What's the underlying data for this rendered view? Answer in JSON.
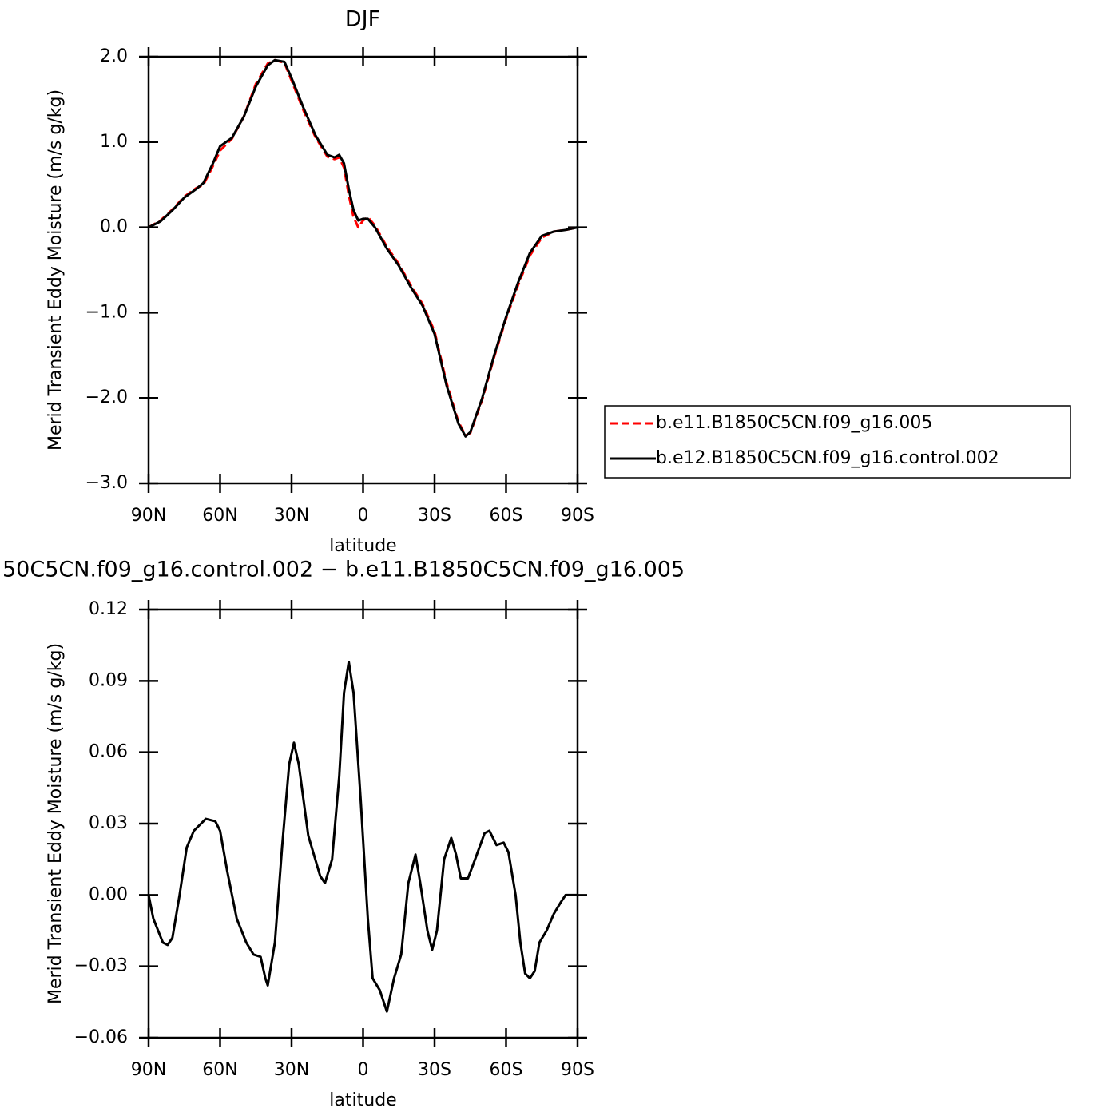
{
  "chart_data": [
    {
      "type": "line",
      "title": "DJF",
      "xlabel": "latitude",
      "ylabel": "Merid Transient Eddy Moisture (m/s g/kg)",
      "x": [
        90,
        85,
        80,
        75,
        70,
        67,
        63,
        60,
        55,
        50,
        45,
        40,
        37,
        33,
        30,
        25,
        20,
        15,
        12,
        10,
        8,
        6,
        4,
        2,
        0,
        -2,
        -5,
        -10,
        -15,
        -20,
        -25,
        -30,
        -35,
        -40,
        -43,
        -45,
        -50,
        -55,
        -60,
        -65,
        -70,
        -75,
        -80,
        -85,
        -90
      ],
      "series": [
        {
          "name": "b.e11.B1850C5CN.f09_g16.005",
          "color": "#ff0000",
          "dash": true,
          "values": [
            0.0,
            0.08,
            0.21,
            0.36,
            0.46,
            0.5,
            0.72,
            0.9,
            1.04,
            1.3,
            1.68,
            1.92,
            1.96,
            1.93,
            1.72,
            1.37,
            1.06,
            0.83,
            0.8,
            0.82,
            0.7,
            0.38,
            0.12,
            0.0,
            0.08,
            0.12,
            0.02,
            -0.23,
            -0.43,
            -0.68,
            -0.9,
            -1.22,
            -1.82,
            -2.28,
            -2.44,
            -2.41,
            -2.02,
            -1.52,
            -1.07,
            -0.68,
            -0.33,
            -0.12,
            -0.05,
            -0.03,
            0.0
          ]
        },
        {
          "name": "b.e12.B1850C5CN.f09_g16.control.002",
          "color": "#000000",
          "dash": false,
          "values": [
            0.0,
            0.07,
            0.2,
            0.35,
            0.45,
            0.52,
            0.75,
            0.95,
            1.05,
            1.3,
            1.65,
            1.9,
            1.96,
            1.94,
            1.75,
            1.4,
            1.08,
            0.85,
            0.82,
            0.85,
            0.75,
            0.45,
            0.2,
            0.08,
            0.1,
            0.1,
            0.0,
            -0.25,
            -0.45,
            -0.7,
            -0.92,
            -1.25,
            -1.85,
            -2.3,
            -2.45,
            -2.4,
            -2.0,
            -1.5,
            -1.05,
            -0.65,
            -0.3,
            -0.1,
            -0.05,
            -0.03,
            0.0
          ]
        }
      ],
      "xlim": [
        90,
        -90
      ],
      "ylim": [
        -3.0,
        2.0
      ],
      "xticks": [
        {
          "value": 90,
          "label": "90N"
        },
        {
          "value": 60,
          "label": "60N"
        },
        {
          "value": 30,
          "label": "30N"
        },
        0,
        {
          "value": -30,
          "label": "30S"
        },
        {
          "value": -60,
          "label": "60S"
        },
        {
          "value": -90,
          "label": "90S"
        }
      ],
      "yticks": [
        {
          "value": 2.0,
          "label": "2.0"
        },
        {
          "value": 1.0,
          "label": "1.0"
        },
        {
          "value": 0.0,
          "label": "0.0"
        },
        {
          "value": -1.0,
          "label": "−1.0"
        },
        {
          "value": -2.0,
          "label": "−2.0"
        },
        {
          "value": -3.0,
          "label": "−3.0"
        }
      ],
      "legend": "right"
    },
    {
      "type": "line",
      "title": "50C5CN.f09_g16.control.002 − b.e11.B1850C5CN.f09_g16.005",
      "xlabel": "latitude",
      "ylabel": "Merid Transient Eddy Moisture (m/s g/kg)",
      "x": [
        90,
        88,
        86,
        84,
        82,
        80,
        77,
        74,
        71,
        68,
        66,
        62,
        60,
        57,
        53,
        49,
        46,
        43,
        41,
        40,
        37,
        34,
        31,
        29,
        27,
        23,
        18,
        16,
        13,
        10,
        8,
        6,
        4,
        1,
        -2,
        -4,
        -7,
        -10,
        -13,
        -16,
        -19,
        -22,
        -24,
        -27,
        -29,
        -31,
        -34,
        -37,
        -39,
        -41,
        -44,
        -47,
        -51,
        -53,
        -56,
        -59,
        -61,
        -64,
        -66,
        -68,
        -70,
        -72,
        -74,
        -77,
        -80,
        -83,
        -85,
        -90
      ],
      "series": [
        {
          "color": "#000000",
          "dash": false,
          "values": [
            0.0,
            -0.01,
            -0.015,
            -0.02,
            -0.021,
            -0.018,
            0.0,
            0.02,
            0.027,
            0.03,
            0.032,
            0.031,
            0.027,
            0.01,
            -0.01,
            -0.02,
            -0.025,
            -0.026,
            -0.035,
            -0.038,
            -0.02,
            0.02,
            0.055,
            0.064,
            0.055,
            0.025,
            0.008,
            0.005,
            0.015,
            0.05,
            0.085,
            0.098,
            0.085,
            0.04,
            -0.01,
            -0.035,
            -0.04,
            -0.049,
            -0.035,
            -0.025,
            0.005,
            0.017,
            0.005,
            -0.015,
            -0.023,
            -0.015,
            0.015,
            0.024,
            0.017,
            0.007,
            0.007,
            0.015,
            0.026,
            0.027,
            0.021,
            0.022,
            0.018,
            0.0,
            -0.02,
            -0.033,
            -0.035,
            -0.032,
            -0.02,
            -0.015,
            -0.008,
            -0.003,
            0.0,
            0.0
          ]
        }
      ],
      "xlim": [
        90,
        -90
      ],
      "ylim": [
        -0.06,
        0.12
      ],
      "xticks": [
        {
          "value": 90,
          "label": "90N"
        },
        {
          "value": 60,
          "label": "60N"
        },
        {
          "value": 30,
          "label": "30N"
        },
        0,
        {
          "value": -30,
          "label": "30S"
        },
        {
          "value": -60,
          "label": "60S"
        },
        {
          "value": -90,
          "label": "90S"
        }
      ],
      "yticks": [
        0.12,
        0.09,
        0.06,
        0.03,
        {
          "value": 0.0,
          "label": "0.00"
        },
        {
          "value": -0.03,
          "label": "−0.03"
        },
        {
          "value": -0.06,
          "label": "−0.06"
        }
      ]
    }
  ]
}
